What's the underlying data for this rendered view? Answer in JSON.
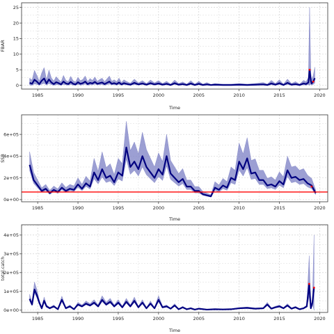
{
  "chart_data": [
    {
      "type": "line",
      "xlabel": "Time",
      "ylabel": "FBAR",
      "xlim": [
        1983,
        2021
      ],
      "ylim": [
        -1.2,
        26.5
      ],
      "xticks": [
        1985,
        1990,
        1995,
        2000,
        2005,
        2010,
        2015,
        2020
      ],
      "yticks": [
        0,
        5,
        10,
        15,
        20,
        25
      ],
      "ytick_labels": [
        "0",
        "5",
        "10",
        "15",
        "20",
        "25"
      ],
      "grid": true,
      "series": [
        {
          "role": "median",
          "color": "#000080",
          "x": [
            1984.0,
            1984.3,
            1984.6,
            1984.9,
            1985.2,
            1985.5,
            1985.8,
            1986.1,
            1986.4,
            1986.7,
            1987.0,
            1987.3,
            1987.6,
            1987.9,
            1988.2,
            1988.5,
            1988.8,
            1989.1,
            1989.4,
            1989.7,
            1990.0,
            1990.3,
            1990.6,
            1990.9,
            1991.2,
            1991.5,
            1991.8,
            1992.1,
            1992.4,
            1992.7,
            1993.0,
            1993.3,
            1993.6,
            1993.9,
            1994.2,
            1994.5,
            1994.8,
            1995.1,
            1995.4,
            1995.7,
            1996.0,
            1996.5,
            1997.0,
            1997.5,
            1998.0,
            1998.5,
            1999.0,
            1999.5,
            2000.0,
            2000.5,
            2001.0,
            2001.5,
            2002.0,
            2002.5,
            2003.0,
            2003.5,
            2004.0,
            2004.5,
            2005.0,
            2005.5,
            2006.0,
            2006.5,
            2007.0,
            2008.0,
            2009.0,
            2010.0,
            2011.0,
            2012.0,
            2013.0,
            2013.5,
            2014.0,
            2014.5,
            2015.0,
            2015.5,
            2016.0,
            2016.5,
            2017.0,
            2017.5,
            2018.0,
            2018.3,
            2018.6,
            2018.75,
            2018.9,
            2019.0,
            2019.2,
            2019.4
          ],
          "y": [
            0.8,
            0.5,
            1.8,
            1.2,
            0.4,
            1.5,
            2.2,
            0.6,
            1.9,
            0.9,
            0.4,
            1.0,
            0.7,
            0.3,
            1.2,
            0.6,
            0.4,
            1.1,
            0.5,
            0.3,
            1.0,
            0.5,
            0.7,
            1.2,
            0.4,
            0.8,
            0.6,
            1.1,
            0.5,
            0.7,
            0.9,
            0.4,
            0.8,
            1.2,
            0.5,
            0.7,
            0.4,
            0.9,
            0.3,
            0.7,
            0.5,
            0.2,
            0.8,
            0.3,
            0.6,
            0.2,
            0.7,
            0.3,
            0.6,
            0.2,
            0.5,
            0.1,
            0.7,
            0.2,
            0.4,
            0.1,
            0.6,
            0.1,
            0.5,
            0.1,
            0.3,
            0.1,
            0.2,
            0.1,
            0.1,
            0.2,
            0.1,
            0.2,
            0.3,
            0.1,
            0.6,
            0.2,
            0.7,
            0.1,
            0.8,
            0.2,
            0.4,
            0.1,
            0.6,
            0.4,
            0.9,
            5.0,
            1.5,
            0.6,
            1.2,
            2.3
          ],
          "band_width": [
            1.5,
            1.2,
            3.0,
            2.0,
            1.0,
            2.5,
            3.5,
            1.2,
            3.0,
            1.5,
            1.0,
            1.8,
            1.2,
            0.8,
            2.0,
            1.0,
            0.8,
            1.8,
            1.0,
            0.8,
            1.6,
            1.0,
            1.2,
            1.8,
            0.8,
            1.4,
            1.0,
            1.6,
            0.8,
            1.2,
            1.4,
            0.8,
            1.3,
            1.8,
            0.8,
            1.1,
            0.8,
            1.4,
            0.6,
            1.1,
            0.8,
            0.5,
            1.2,
            0.5,
            0.9,
            0.4,
            1.0,
            0.5,
            0.9,
            0.4,
            0.8,
            0.3,
            1.0,
            0.4,
            0.7,
            0.3,
            0.9,
            0.3,
            0.8,
            0.3,
            0.6,
            0.2,
            0.4,
            0.3,
            0.3,
            0.4,
            0.3,
            0.4,
            0.6,
            0.3,
            1.0,
            0.4,
            1.1,
            0.3,
            1.2,
            0.4,
            0.8,
            0.3,
            1.0,
            0.8,
            1.5,
            20.0,
            2.5,
            1.2,
            2.0,
            3.5
          ]
        }
      ],
      "markers": [
        {
          "x": 2018.75,
          "y": 5.0,
          "color": "#ff0000"
        },
        {
          "x": 2019.2,
          "y": 1.2,
          "color": "#ff0000"
        }
      ]
    },
    {
      "type": "line",
      "xlabel": "Time",
      "ylabel": "SSB",
      "xlim": [
        1983,
        2021
      ],
      "ylim": [
        -20000,
        780000
      ],
      "xticks": [
        1985,
        1990,
        1995,
        2000,
        2005,
        2010,
        2015,
        2020
      ],
      "yticks": [
        0,
        200000,
        400000,
        600000
      ],
      "ytick_labels": [
        "0e+00",
        "2e+05",
        "4e+05",
        "6e+05"
      ],
      "grid": true,
      "reference_line": {
        "y": 70000,
        "color": "#ff0000"
      },
      "series": [
        {
          "role": "median",
          "color": "#000080",
          "x": [
            1984.0,
            1984.5,
            1985.0,
            1985.5,
            1986.0,
            1986.5,
            1987.0,
            1987.5,
            1988.0,
            1988.5,
            1989.0,
            1989.5,
            1990.0,
            1990.5,
            1991.0,
            1991.5,
            1992.0,
            1992.5,
            1993.0,
            1993.5,
            1994.0,
            1994.5,
            1995.0,
            1995.5,
            1996.0,
            1996.5,
            1997.0,
            1997.5,
            1998.0,
            1998.5,
            1999.0,
            1999.5,
            2000.0,
            2000.5,
            2001.0,
            2001.5,
            2002.0,
            2002.5,
            2003.0,
            2003.5,
            2004.0,
            2004.5,
            2005.0,
            2005.5,
            2006.0,
            2006.5,
            2007.0,
            2007.5,
            2008.0,
            2008.5,
            2009.0,
            2009.5,
            2010.0,
            2010.5,
            2011.0,
            2011.5,
            2012.0,
            2012.5,
            2013.0,
            2013.5,
            2014.0,
            2014.5,
            2015.0,
            2015.5,
            2016.0,
            2016.5,
            2017.0,
            2017.5,
            2018.0,
            2018.5,
            2019.0,
            2019.5
          ],
          "y": [
            320000,
            180000,
            130000,
            80000,
            100000,
            60000,
            90000,
            70000,
            110000,
            80000,
            100000,
            90000,
            140000,
            100000,
            150000,
            120000,
            250000,
            180000,
            280000,
            200000,
            220000,
            160000,
            250000,
            220000,
            480000,
            300000,
            350000,
            280000,
            400000,
            300000,
            250000,
            200000,
            280000,
            230000,
            400000,
            240000,
            200000,
            160000,
            190000,
            120000,
            120000,
            80000,
            80000,
            50000,
            40000,
            30000,
            110000,
            90000,
            130000,
            110000,
            200000,
            180000,
            350000,
            280000,
            380000,
            240000,
            250000,
            180000,
            180000,
            130000,
            140000,
            120000,
            170000,
            140000,
            270000,
            200000,
            210000,
            180000,
            190000,
            150000,
            130000,
            60000
          ],
          "band_width": [
            120000,
            70000,
            50000,
            30000,
            40000,
            25000,
            35000,
            28000,
            45000,
            32000,
            40000,
            36000,
            60000,
            40000,
            65000,
            50000,
            130000,
            80000,
            160000,
            95000,
            110000,
            70000,
            130000,
            110000,
            240000,
            150000,
            180000,
            140000,
            220000,
            160000,
            130000,
            100000,
            150000,
            120000,
            200000,
            120000,
            100000,
            80000,
            95000,
            60000,
            60000,
            40000,
            40000,
            25000,
            20000,
            15000,
            55000,
            45000,
            65000,
            55000,
            100000,
            90000,
            170000,
            140000,
            190000,
            120000,
            125000,
            90000,
            90000,
            65000,
            70000,
            60000,
            85000,
            70000,
            130000,
            100000,
            100000,
            90000,
            95000,
            75000,
            65000,
            30000
          ]
        }
      ],
      "markers": [
        {
          "x": 2019.0,
          "y": 120000,
          "color": "#ff0000"
        }
      ]
    },
    {
      "type": "line",
      "xlabel": "Time",
      "ylabel": "total.catch",
      "xlim": [
        1983,
        2021
      ],
      "ylim": [
        -12000,
        455000
      ],
      "xticks": [
        1985,
        1990,
        1995,
        2000,
        2005,
        2010,
        2015,
        2020
      ],
      "yticks": [
        0,
        100000,
        200000,
        300000,
        400000
      ],
      "ytick_labels": [
        "0e+00",
        "1e+05",
        "2e+05",
        "3e+05",
        "4e+05"
      ],
      "grid": true,
      "series": [
        {
          "role": "median",
          "color": "#000080",
          "x": [
            1984.0,
            1984.3,
            1984.6,
            1984.9,
            1985.2,
            1985.5,
            1985.8,
            1986.1,
            1986.5,
            1987.0,
            1987.5,
            1988.0,
            1988.5,
            1989.0,
            1989.5,
            1990.0,
            1990.5,
            1991.0,
            1991.5,
            1992.0,
            1992.5,
            1993.0,
            1993.5,
            1994.0,
            1994.5,
            1995.0,
            1995.5,
            1996.0,
            1996.5,
            1997.0,
            1997.5,
            1998.0,
            1998.5,
            1999.0,
            1999.5,
            2000.0,
            2000.5,
            2001.0,
            2001.5,
            2002.0,
            2002.5,
            2003.0,
            2003.5,
            2004.0,
            2004.5,
            2005.0,
            2006.0,
            2007.0,
            2008.0,
            2009.0,
            2010.0,
            2011.0,
            2012.0,
            2013.0,
            2013.5,
            2014.0,
            2014.5,
            2015.0,
            2015.5,
            2016.0,
            2016.5,
            2017.0,
            2017.5,
            2018.0,
            2018.4,
            2018.7,
            2018.9,
            2019.1,
            2019.3
          ],
          "y": [
            60000,
            30000,
            110000,
            80000,
            40000,
            10000,
            50000,
            20000,
            10000,
            20000,
            5000,
            55000,
            10000,
            20000,
            5000,
            30000,
            20000,
            35000,
            25000,
            40000,
            20000,
            55000,
            30000,
            45000,
            20000,
            40000,
            15000,
            45000,
            20000,
            50000,
            15000,
            40000,
            10000,
            35000,
            10000,
            55000,
            15000,
            20000,
            8000,
            25000,
            5000,
            15000,
            5000,
            10000,
            3000,
            8000,
            3000,
            5000,
            4000,
            5000,
            10000,
            12000,
            8000,
            10000,
            30000,
            8000,
            15000,
            20000,
            10000,
            25000,
            8000,
            15000,
            5000,
            10000,
            20000,
            140000,
            10000,
            40000,
            120000
          ],
          "band_width": [
            25000,
            12000,
            40000,
            30000,
            15000,
            5000,
            20000,
            8000,
            5000,
            8000,
            3000,
            20000,
            5000,
            8000,
            3000,
            12000,
            8000,
            14000,
            10000,
            16000,
            8000,
            22000,
            12000,
            18000,
            8000,
            16000,
            6000,
            18000,
            8000,
            20000,
            6000,
            16000,
            4000,
            14000,
            4000,
            22000,
            6000,
            8000,
            3000,
            10000,
            2000,
            6000,
            2000,
            4000,
            1500,
            3500,
            1500,
            2500,
            2000,
            2500,
            4000,
            5000,
            3500,
            4000,
            12000,
            3500,
            6000,
            8000,
            4000,
            10000,
            3500,
            6000,
            2500,
            4000,
            8000,
            150000,
            5000,
            20000,
            280000
          ]
        }
      ],
      "markers": [
        {
          "x": 2018.7,
          "y": 140000,
          "color": "#ff0000"
        },
        {
          "x": 2019.3,
          "y": 120000,
          "color": "#ff0000"
        }
      ]
    }
  ]
}
